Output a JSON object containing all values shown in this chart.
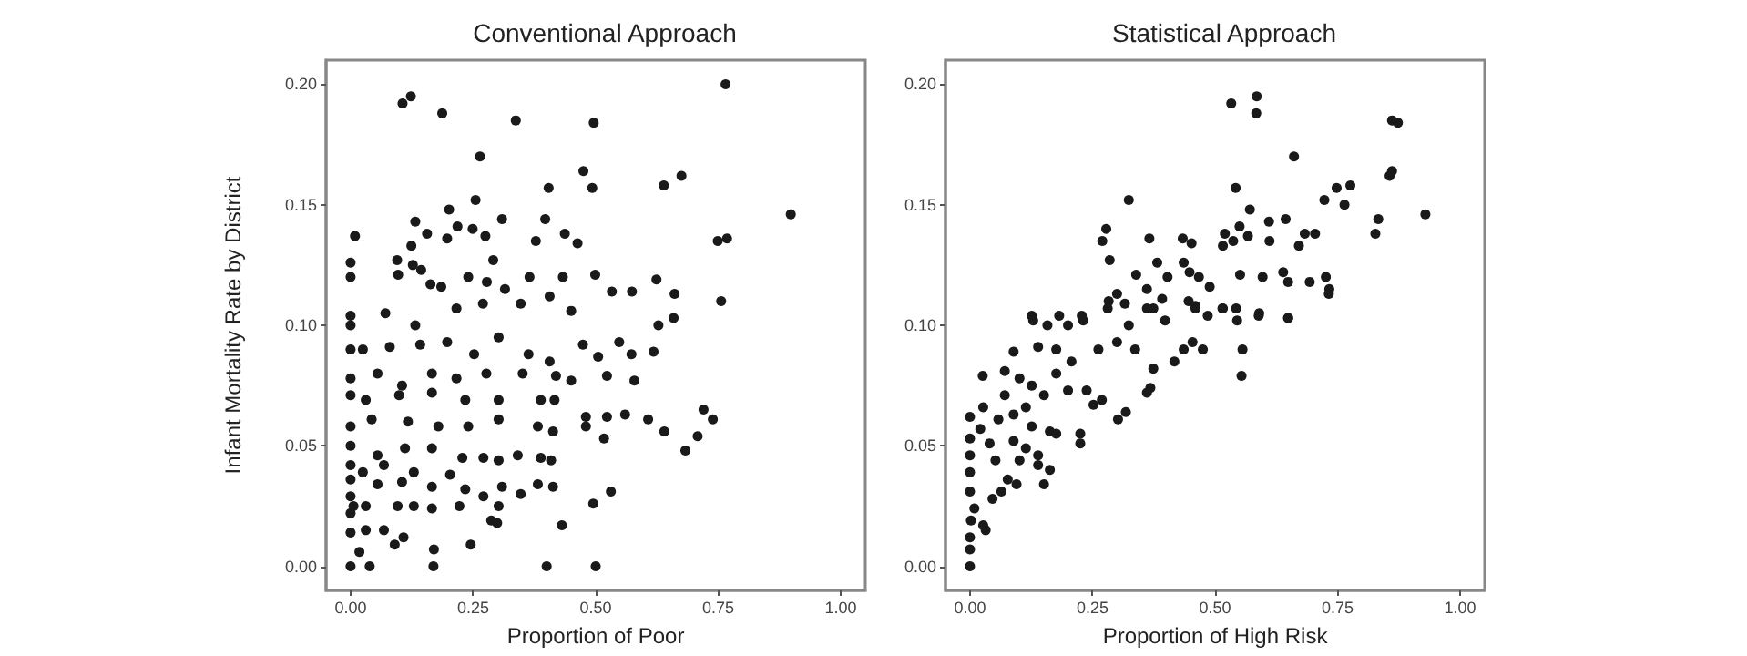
{
  "chart_data": [
    {
      "type": "scatter",
      "title": "Conventional Approach",
      "xlabel": "Proportion of Poor",
      "ylabel": "Infant Mortality Rate by District",
      "marker": "circle",
      "grid": false,
      "color": "#1a1a1a",
      "xlim": [
        -0.05,
        1.05
      ],
      "ylim": [
        -0.01,
        0.21
      ],
      "xticks": [
        {
          "value": 0,
          "label": "0.00"
        },
        {
          "value": 0.25,
          "label": "0.25"
        },
        {
          "value": 0.5,
          "label": "0.50"
        },
        {
          "value": 0.75,
          "label": "0.75"
        },
        {
          "value": 1,
          "label": "1.00"
        }
      ],
      "yticks": [
        {
          "value": 0,
          "label": "0.00"
        },
        {
          "value": 0.05,
          "label": "0.05"
        },
        {
          "value": 0.1,
          "label": "0.10"
        },
        {
          "value": 0.15,
          "label": "0.15"
        },
        {
          "value": 0.2,
          "label": "0.20"
        }
      ],
      "x": [
        0.106,
        0.123,
        0.187,
        0.337,
        0.496,
        0.765,
        0.264,
        0.475,
        0.404,
        0.493,
        0.639,
        0.675,
        0.898,
        0.255,
        0.201,
        0.132,
        0.309,
        0.397,
        0.009,
        0.197,
        0.218,
        0.249,
        0.275,
        0.378,
        0.437,
        0.463,
        0.124,
        0.156,
        0.749,
        0.768,
        0,
        0.095,
        0.127,
        0.291,
        0,
        0.097,
        0.144,
        0.163,
        0.24,
        0.278,
        0.365,
        0.406,
        0.433,
        0.499,
        0.533,
        0.574,
        0.624,
        0.661,
        0.756,
        0.185,
        0.315,
        0.347,
        0,
        0,
        0.071,
        0.132,
        0.216,
        0.27,
        0.45,
        0.628,
        0.659,
        0,
        0.025,
        0.08,
        0.142,
        0.197,
        0.252,
        0.302,
        0.363,
        0.406,
        0.474,
        0.505,
        0.548,
        0.573,
        0.618,
        0,
        0.055,
        0.105,
        0.166,
        0.216,
        0.277,
        0.351,
        0.419,
        0.45,
        0.523,
        0.579,
        0,
        0.031,
        0.099,
        0.166,
        0.234,
        0.302,
        0.388,
        0.416,
        0.48,
        0.56,
        0.607,
        0.64,
        0.72,
        0.739,
        0.708,
        0.683,
        0,
        0.043,
        0.117,
        0.179,
        0.24,
        0.302,
        0.382,
        0.413,
        0.48,
        0.523,
        0.517,
        0,
        0.055,
        0.111,
        0.166,
        0.228,
        0.271,
        0.302,
        0.341,
        0.388,
        0.409,
        0,
        0.025,
        0.068,
        0.129,
        0.203,
        0,
        0.055,
        0.105,
        0.166,
        0.234,
        0.309,
        0.347,
        0.382,
        0.413,
        0,
        0.006,
        0.031,
        0.096,
        0.129,
        0.166,
        0.222,
        0.271,
        0.302,
        0.531,
        0.495,
        0,
        0,
        0.031,
        0.068,
        0.108,
        0.09,
        0.018,
        0.17,
        0.245,
        0.287,
        0.299,
        0.431,
        0,
        0.039,
        0.169,
        0.4,
        0.5
      ],
      "values": [
        0.192,
        0.195,
        0.188,
        0.185,
        0.184,
        0.2,
        0.17,
        0.164,
        0.157,
        0.157,
        0.158,
        0.162,
        0.146,
        0.152,
        0.148,
        0.143,
        0.144,
        0.144,
        0.137,
        0.136,
        0.141,
        0.14,
        0.137,
        0.135,
        0.138,
        0.134,
        0.133,
        0.138,
        0.135,
        0.136,
        0.126,
        0.127,
        0.125,
        0.127,
        0.12,
        0.121,
        0.123,
        0.117,
        0.12,
        0.118,
        0.12,
        0.112,
        0.12,
        0.121,
        0.114,
        0.114,
        0.119,
        0.113,
        0.11,
        0.116,
        0.115,
        0.109,
        0.104,
        0.1,
        0.105,
        0.1,
        0.107,
        0.109,
        0.106,
        0.1,
        0.103,
        0.09,
        0.09,
        0.091,
        0.092,
        0.093,
        0.088,
        0.095,
        0.088,
        0.085,
        0.092,
        0.087,
        0.093,
        0.088,
        0.089,
        0.078,
        0.08,
        0.075,
        0.08,
        0.078,
        0.08,
        0.08,
        0.079,
        0.077,
        0.079,
        0.077,
        0.071,
        0.069,
        0.071,
        0.072,
        0.069,
        0.069,
        0.069,
        0.069,
        0.062,
        0.063,
        0.061,
        0.056,
        0.065,
        0.061,
        0.054,
        0.048,
        0.058,
        0.061,
        0.06,
        0.058,
        0.058,
        0.061,
        0.058,
        0.056,
        0.058,
        0.062,
        0.053,
        0.05,
        0.046,
        0.049,
        0.049,
        0.045,
        0.045,
        0.044,
        0.046,
        0.045,
        0.044,
        0.042,
        0.039,
        0.042,
        0.039,
        0.038,
        0.036,
        0.034,
        0.035,
        0.033,
        0.032,
        0.033,
        0.03,
        0.034,
        0.033,
        0.029,
        0.025,
        0.025,
        0.025,
        0.025,
        0.024,
        0.025,
        0.029,
        0.025,
        0.031,
        0.026,
        0.022,
        0.014,
        0.015,
        0.015,
        0.012,
        0.009,
        0.006,
        0.007,
        0.009,
        0.019,
        0.018,
        0.017,
        0,
        0,
        0,
        0,
        0
      ]
    },
    {
      "type": "scatter",
      "title": "Statistical Approach",
      "xlabel": "Proportion of High Risk",
      "marker": "circle",
      "grid": false,
      "color": "#1a1a1a",
      "xlim": [
        -0.05,
        1.05
      ],
      "ylim": [
        -0.01,
        0.21
      ],
      "xticks": [
        {
          "value": 0,
          "label": "0.00"
        },
        {
          "value": 0.25,
          "label": "0.25"
        },
        {
          "value": 0.5,
          "label": "0.50"
        },
        {
          "value": 0.75,
          "label": "0.75"
        },
        {
          "value": 1,
          "label": "1.00"
        }
      ],
      "yticks": [
        {
          "value": 0,
          "label": "0.00"
        },
        {
          "value": 0.05,
          "label": "0.05"
        },
        {
          "value": 0.1,
          "label": "0.10"
        },
        {
          "value": 0.15,
          "label": "0.15"
        },
        {
          "value": 0.2,
          "label": "0.20"
        }
      ],
      "x": [
        0.533,
        0.585,
        0.584,
        0.861,
        0.873,
        0.661,
        0.856,
        0.861,
        0.542,
        0.748,
        0.776,
        0.764,
        0.723,
        0.324,
        0.929,
        0.571,
        0.61,
        0.644,
        0.833,
        0.827,
        0.278,
        0.27,
        0.366,
        0.434,
        0.452,
        0.52,
        0.516,
        0.537,
        0.55,
        0.567,
        0.611,
        0.683,
        0.704,
        0.671,
        0.285,
        0.382,
        0.436,
        0.448,
        0.467,
        0.489,
        0.339,
        0.403,
        0.551,
        0.597,
        0.639,
        0.649,
        0.693,
        0.726,
        0.733,
        0.732,
        0.3,
        0.283,
        0.316,
        0.361,
        0.392,
        0.374,
        0.446,
        0.46,
        0.515,
        0.543,
        0.589,
        0.649,
        0.126,
        0.182,
        0.228,
        0,
        0,
        0,
        0.002,
        0.027,
        0.032,
        0.009,
        0,
        0,
        0,
        0,
        0,
        0.021,
        0.04,
        0.052,
        0.077,
        0.064,
        0.046,
        0.095,
        0.151,
        0.101,
        0.139,
        0.163,
        0.089,
        0.114,
        0.139,
        0.027,
        0.058,
        0.071,
        0.089,
        0.114,
        0.126,
        0.163,
        0.176,
        0.225,
        0.225,
        0.026,
        0.071,
        0.101,
        0.126,
        0.151,
        0.176,
        0.2,
        0.238,
        0.269,
        0.252,
        0.089,
        0.139,
        0.176,
        0.207,
        0.262,
        0.3,
        0.337,
        0.374,
        0.368,
        0.361,
        0.302,
        0.318,
        0.417,
        0.436,
        0.454,
        0.475,
        0.556,
        0.554,
        0.129,
        0.158,
        0.2,
        0.231,
        0.281,
        0.324,
        0.361,
        0.398,
        0.46,
        0.485,
        0.516,
        0.545,
        0.59,
        0.649
      ],
      "values": [
        0.192,
        0.195,
        0.188,
        0.185,
        0.184,
        0.17,
        0.162,
        0.164,
        0.157,
        0.157,
        0.158,
        0.15,
        0.152,
        0.152,
        0.146,
        0.148,
        0.143,
        0.144,
        0.144,
        0.138,
        0.14,
        0.135,
        0.136,
        0.136,
        0.134,
        0.138,
        0.133,
        0.135,
        0.141,
        0.137,
        0.135,
        0.138,
        0.138,
        0.133,
        0.127,
        0.126,
        0.126,
        0.122,
        0.12,
        0.116,
        0.121,
        0.12,
        0.121,
        0.12,
        0.122,
        0.118,
        0.118,
        0.12,
        0.115,
        0.113,
        0.113,
        0.11,
        0.109,
        0.115,
        0.111,
        0.107,
        0.11,
        0.108,
        0.107,
        0.107,
        0.104,
        0.103,
        0.104,
        0.104,
        0.104,
        0,
        0.007,
        0.012,
        0.019,
        0.017,
        0.015,
        0.024,
        0.031,
        0.039,
        0.046,
        0.053,
        0.062,
        0.057,
        0.051,
        0.044,
        0.036,
        0.031,
        0.028,
        0.034,
        0.034,
        0.044,
        0.042,
        0.04,
        0.052,
        0.049,
        0.046,
        0.066,
        0.061,
        0.071,
        0.063,
        0.066,
        0.058,
        0.056,
        0.055,
        0.055,
        0.051,
        0.079,
        0.081,
        0.078,
        0.075,
        0.071,
        0.08,
        0.073,
        0.073,
        0.069,
        0.067,
        0.089,
        0.091,
        0.09,
        0.085,
        0.09,
        0.093,
        0.09,
        0.082,
        0.074,
        0.072,
        0.061,
        0.064,
        0.085,
        0.09,
        0.093,
        0.09,
        0.09,
        0.079,
        0.102,
        0.1,
        0.1,
        0.102,
        0.107,
        0.1,
        0.107,
        0.102,
        0.107,
        0.104,
        0.107,
        0.102,
        0.105,
        0.103
      ]
    }
  ]
}
